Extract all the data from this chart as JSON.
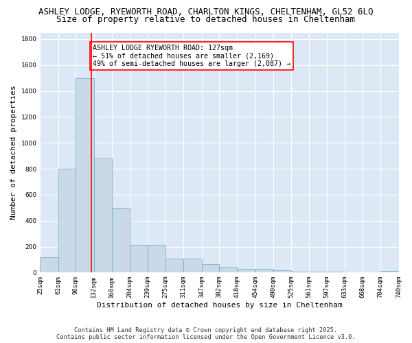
{
  "title_line1": "ASHLEY LODGE, RYEWORTH ROAD, CHARLTON KINGS, CHELTENHAM, GL52 6LQ",
  "title_line2": "Size of property relative to detached houses in Cheltenham",
  "xlabel": "Distribution of detached houses by size in Cheltenham",
  "ylabel": "Number of detached properties",
  "bar_edges": [
    25,
    61,
    96,
    132,
    168,
    204,
    239,
    275,
    311,
    347,
    382,
    418,
    454,
    490,
    525,
    561,
    597,
    633,
    668,
    704,
    740
  ],
  "bar_heights": [
    120,
    800,
    1500,
    880,
    500,
    215,
    215,
    110,
    110,
    65,
    45,
    30,
    30,
    20,
    5,
    5,
    5,
    0,
    0,
    10
  ],
  "bar_color": "#c9d9e8",
  "bar_edge_color": "#6fa8c9",
  "vline_x": 127,
  "vline_color": "red",
  "annotation_text": "ASHLEY LODGE RYEWORTH ROAD: 127sqm\n← 51% of detached houses are smaller (2,169)\n49% of semi-detached houses are larger (2,087) →",
  "annotation_box_color": "white",
  "annotation_box_edge": "red",
  "ylim": [
    0,
    1850
  ],
  "yticks": [
    0,
    200,
    400,
    600,
    800,
    1000,
    1200,
    1400,
    1600,
    1800
  ],
  "tick_labels": [
    "25sqm",
    "61sqm",
    "96sqm",
    "132sqm",
    "168sqm",
    "204sqm",
    "239sqm",
    "275sqm",
    "311sqm",
    "347sqm",
    "382sqm",
    "418sqm",
    "454sqm",
    "490sqm",
    "525sqm",
    "561sqm",
    "597sqm",
    "633sqm",
    "668sqm",
    "704sqm",
    "740sqm"
  ],
  "bg_color": "#dce8f5",
  "footer_text": "Contains HM Land Registry data © Crown copyright and database right 2025.\nContains public sector information licensed under the Open Government Licence v3.0.",
  "grid_color": "white",
  "title_fontsize": 9.0,
  "subtitle_fontsize": 9.0,
  "axis_label_fontsize": 8.0,
  "tick_fontsize": 6.5,
  "annotation_fontsize": 7.2,
  "footer_fontsize": 6.2
}
